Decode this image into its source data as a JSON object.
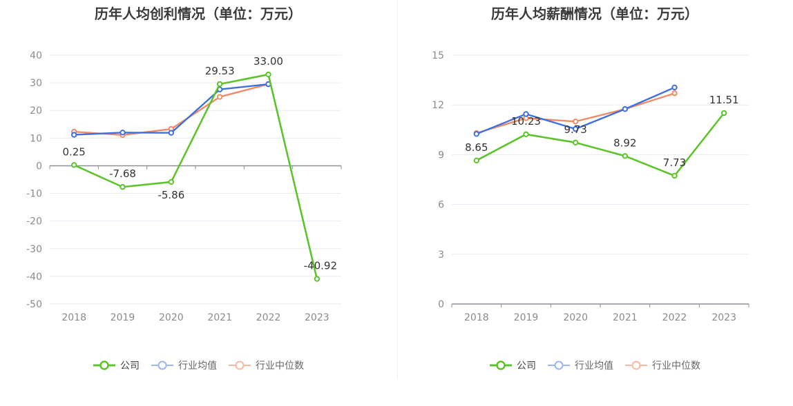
{
  "chart_data": [
    {
      "type": "line",
      "title": "历年人均创利情况（单位：万元）",
      "categories": [
        "2018",
        "2019",
        "2020",
        "2021",
        "2022",
        "2023"
      ],
      "ylim": [
        -50,
        40
      ],
      "yticks": [
        40,
        30,
        20,
        10,
        0,
        -10,
        -20,
        -30,
        -40,
        -50
      ],
      "tick_labels": [
        "40",
        "30",
        "20",
        "10",
        "0",
        "-10",
        "-20",
        "-30",
        "-40",
        "-50"
      ],
      "grid": true,
      "legend": "bottom",
      "series": [
        {
          "name": "公司",
          "color": "#5cc42a",
          "values": [
            0.25,
            -7.68,
            -5.86,
            29.53,
            33.0,
            -40.92
          ],
          "labels": [
            "0.25",
            "-7.68",
            "-5.86",
            "29.53",
            "33.00",
            "-40.92"
          ]
        },
        {
          "name": "行业均值",
          "color": "#3f6fdc",
          "values": [
            11.2,
            12.0,
            11.9,
            27.6,
            29.5,
            null
          ]
        },
        {
          "name": "行业中位数",
          "color": "#f08a65",
          "values": [
            12.3,
            11.1,
            13.3,
            24.9,
            29.5,
            null
          ]
        }
      ]
    },
    {
      "type": "line",
      "title": "历年人均薪酬情况（单位：万元）",
      "categories": [
        "2018",
        "2019",
        "2020",
        "2021",
        "2022",
        "2023"
      ],
      "ylim": [
        0,
        15
      ],
      "yticks": [
        15,
        12,
        9,
        6,
        3,
        0
      ],
      "tick_labels": [
        "15",
        "12",
        "9",
        "6",
        "3",
        "0"
      ],
      "grid": true,
      "legend": "bottom",
      "series": [
        {
          "name": "公司",
          "color": "#5cc42a",
          "values": [
            8.65,
            10.23,
            9.73,
            8.92,
            7.73,
            11.51
          ],
          "labels": [
            "8.65",
            "10.23",
            "9.73",
            "8.92",
            "7.73",
            "11.51"
          ]
        },
        {
          "name": "行业均值",
          "color": "#3f6fdc",
          "values": [
            10.25,
            11.45,
            10.55,
            11.75,
            13.05,
            null
          ]
        },
        {
          "name": "行业中位数",
          "color": "#f08a65",
          "values": [
            10.3,
            11.2,
            11.0,
            11.75,
            12.7,
            null
          ]
        }
      ]
    }
  ],
  "legend": [
    {
      "name": "公司",
      "color": "#5cc42a",
      "active": true
    },
    {
      "name": "行业均值",
      "color": "#3f6fdc",
      "active": false
    },
    {
      "name": "行业中位数",
      "color": "#f08a65",
      "active": false
    }
  ]
}
